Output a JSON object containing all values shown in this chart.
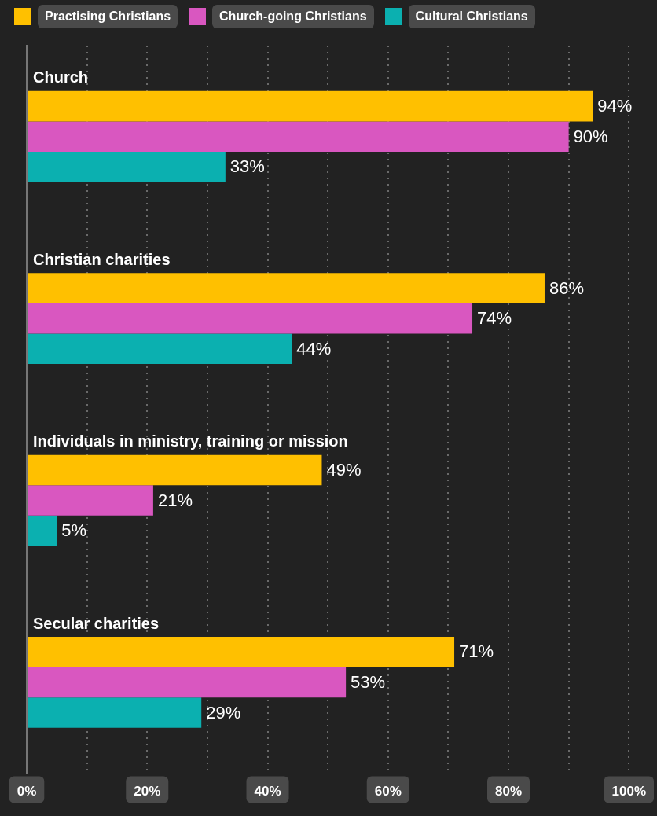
{
  "chart_data": {
    "type": "bar",
    "orientation": "horizontal",
    "categories": [
      "Church",
      "Christian charities",
      "Individuals in ministry, training or mission",
      "Secular charities"
    ],
    "series": [
      {
        "name": "Practising Christians",
        "color": "#ffc000",
        "values": [
          94,
          86,
          49,
          71
        ],
        "value_labels": [
          "94%",
          "86%",
          "49%",
          "71%"
        ]
      },
      {
        "name": "Church-going Christians",
        "color": "#d957c0",
        "values": [
          90,
          74,
          21,
          53
        ],
        "value_labels": [
          "90%",
          "74%",
          "21%",
          "53%"
        ]
      },
      {
        "name": "Cultural Christians",
        "color": "#0bb0b0",
        "values": [
          33,
          44,
          5,
          29
        ],
        "value_labels": [
          "33%",
          "44%",
          "5%",
          "29%"
        ]
      }
    ],
    "xlim": [
      0,
      100
    ],
    "xticks": [
      {
        "value": 0,
        "label": "0%"
      },
      {
        "value": 10,
        "label": null
      },
      {
        "value": 20,
        "label": "20%"
      },
      {
        "value": 30,
        "label": null
      },
      {
        "value": 40,
        "label": "40%"
      },
      {
        "value": 50,
        "label": null
      },
      {
        "value": 60,
        "label": "60%"
      },
      {
        "value": 70,
        "label": null
      },
      {
        "value": 80,
        "label": "80%"
      },
      {
        "value": 90,
        "label": null
      },
      {
        "value": 100,
        "label": "100%"
      }
    ],
    "grid": "x",
    "legend": "top left"
  }
}
